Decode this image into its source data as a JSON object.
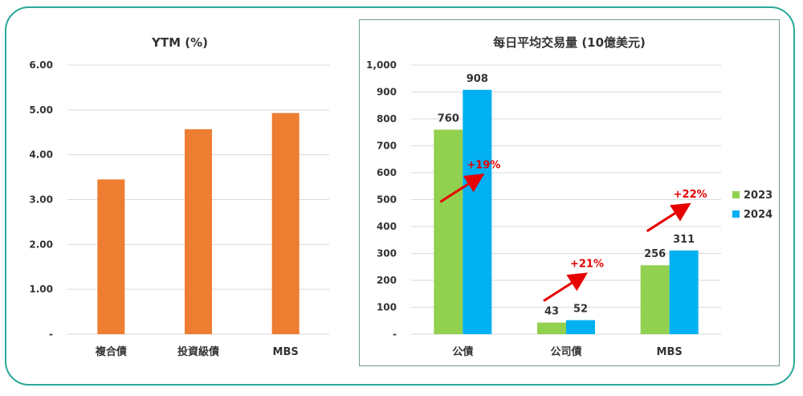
{
  "chart_data": [
    {
      "type": "bar",
      "title": "YTM (%)",
      "categories": [
        "複合債",
        "投資級債",
        "MBS"
      ],
      "values": [
        3.45,
        4.57,
        4.93
      ],
      "ylim": [
        0,
        6
      ],
      "yticks": [
        "-",
        "1.00",
        "2.00",
        "3.00",
        "4.00",
        "5.00",
        "6.00"
      ],
      "color": "#ed7d31",
      "grid": true
    },
    {
      "type": "bar",
      "title": "每日平均交易量 (10億美元)",
      "categories": [
        "公債",
        "公司債",
        "MBS"
      ],
      "series": [
        {
          "name": "2023",
          "values": [
            760,
            43,
            256
          ],
          "color": "#92d050"
        },
        {
          "name": "2024",
          "values": [
            908,
            52,
            311
          ],
          "color": "#00b0f0"
        }
      ],
      "ylim": [
        0,
        1000
      ],
      "yticks": [
        "-",
        "100",
        "200",
        "300",
        "400",
        "500",
        "600",
        "700",
        "800",
        "900",
        "1,000"
      ],
      "annotations": [
        "+19%",
        "+21%",
        "+22%"
      ],
      "legend": "right",
      "grid": true
    }
  ]
}
